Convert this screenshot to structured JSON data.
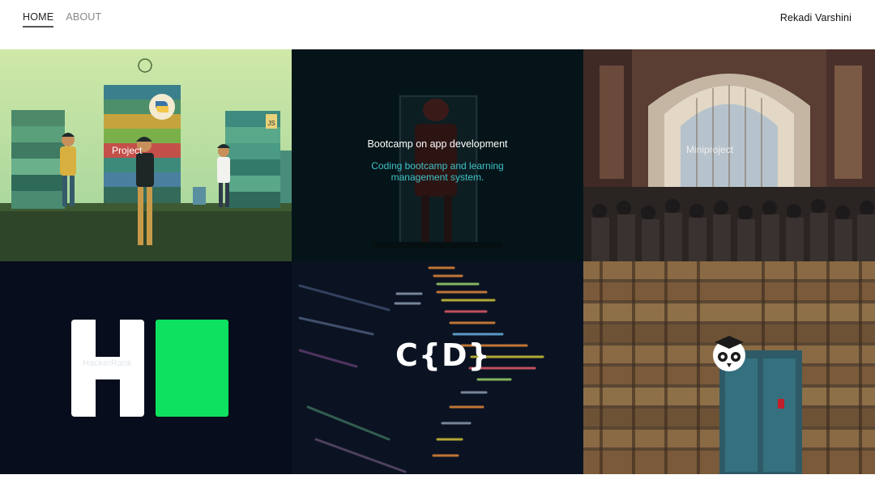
{
  "nav": {
    "items": [
      {
        "label": "HOME",
        "active": true
      },
      {
        "label": "ABOUT",
        "active": false
      }
    ],
    "brand": "Rekadi Varshini"
  },
  "tiles": [
    {
      "label": "Project"
    },
    {
      "title": "Bootcamp on app development",
      "description": "Coding bootcamp and learning management system."
    },
    {
      "label": "Miniproject"
    },
    {
      "label": "HackerRank"
    },
    {
      "logo_text": "C{D}"
    },
    {
      "icon": "owl-icon"
    }
  ],
  "colors": {
    "accent_teal": "#3fc3c7",
    "hackerrank_green": "#0ee060",
    "dark_navy": "#070d1c"
  }
}
